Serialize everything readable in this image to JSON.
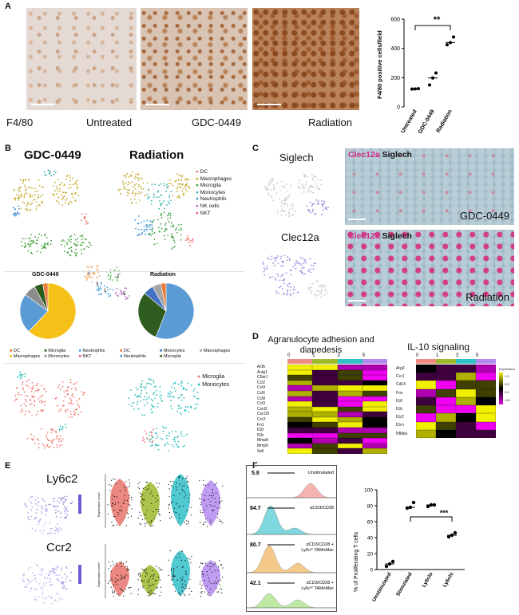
{
  "panels": {
    "A": "A",
    "B": "B",
    "C": "C",
    "D": "D",
    "E": "E",
    "F": "F"
  },
  "panelA": {
    "stain_label": "F4/80",
    "img_labels": [
      "Untreated",
      "GDC-0449",
      "Radiation"
    ],
    "sig": "**"
  },
  "panelB": {
    "titles": [
      "GDC-0449",
      "Radiation"
    ],
    "legend": [
      {
        "name": "DC",
        "color": "#e8736b"
      },
      {
        "name": "Macrophages",
        "color": "#c5a92c"
      },
      {
        "name": "Microglia",
        "color": "#3fa33a"
      },
      {
        "name": "Monocytes",
        "color": "#36b3b0"
      },
      {
        "name": "Neutrophils",
        "color": "#3f8fd8"
      },
      {
        "name": "NK cells",
        "color": "#b565c9"
      },
      {
        "name": "NKT",
        "color": "#e15ca5"
      }
    ],
    "pie_titles": [
      "GDC-0449",
      "Radiation"
    ],
    "pie1_legend": [
      "DC",
      "Microglia",
      "Neutrophils",
      "Macrophages",
      "Monocytes",
      "NKT"
    ],
    "pie2_legend": [
      "DC",
      "Monocytes",
      "Macrophages",
      "Neutrophils",
      "Microglia"
    ],
    "mono_legend": [
      "Microglia",
      "Monocytes"
    ],
    "umap_numbers": [
      "0",
      "1",
      "2",
      "3",
      "4",
      "5"
    ]
  },
  "panelC": {
    "genes": [
      "Siglech",
      "Clec12a"
    ],
    "img_labels": [
      "GDC-0449",
      "Radiation"
    ],
    "stain_a": "Clec12a",
    "stain_b": "Siglech"
  },
  "panelD": {
    "title1": "Agranulocyte adhesion and diapedesis",
    "title2": "IL-10 signaling",
    "clusters": [
      "0",
      "1",
      "3",
      "5"
    ],
    "genes1": [
      "Actb",
      "Actg1",
      "C5ar1",
      "Ccl2",
      "Ccl4",
      "Ccl6",
      "Ccl8",
      "Ccl3",
      "Cxcl2",
      "Cxcl10",
      "Ccr2",
      "Fn1",
      "Il1ß",
      "Il1b",
      "Mmp8",
      "Mmp9",
      "Sell"
    ],
    "genes2": [
      "Arg2",
      "Ccr1",
      "Cd14",
      "Fos",
      "Il1ß",
      "Il1b",
      "Il1r2",
      "Il1rn",
      "Nfkbia"
    ],
    "legend_title": "Expression",
    "legend_ticks": [
      "1.0",
      "0.5",
      "0.0",
      "-0.5",
      "-1.0"
    ]
  },
  "panelE": {
    "genes": [
      "Ly6c2",
      "Ccr2"
    ],
    "ylabel": "Expression Level"
  },
  "panelF": {
    "hist_labels": [
      "Unstimulated",
      "αCD3/CD28",
      "αCD3/CD28 + Ly6cʰⁱ TAMoMac",
      "αCD3/CD28 + Ly6cʰⁱ TAMoMac"
    ],
    "gate_values": [
      "5.8",
      "84.7",
      "80.7",
      "42.1"
    ],
    "sig": "***"
  },
  "chart_data": [
    {
      "type": "scatter",
      "ylabel": "F4/80 positive cells/field",
      "categories": [
        "Untreated",
        "GDC-0449",
        "Radiation"
      ],
      "yticks": [
        "0",
        "200",
        "400",
        "600"
      ],
      "ylim": [
        0,
        600
      ],
      "series": [
        {
          "values": [
            [
              0,
              122
            ],
            [
              0,
              123
            ],
            [
              0,
              125
            ],
            [
              1,
              150
            ],
            [
              1,
              198
            ],
            [
              1,
              232
            ],
            [
              2,
              425
            ],
            [
              2,
              440
            ],
            [
              2,
              478
            ]
          ]
        }
      ],
      "medians": [
        123,
        198,
        440
      ]
    },
    {
      "type": "pie",
      "title": "GDC-0449",
      "slices": [
        {
          "label": "Macrophages",
          "value": 62,
          "color": "#f5c018"
        },
        {
          "label": "Neutrophils",
          "value": 23,
          "color": "#5b9bd5"
        },
        {
          "label": "Monocytes",
          "value": 7,
          "color": "#8c8c8c"
        },
        {
          "label": "Microglia",
          "value": 5,
          "color": "#2f5d1f"
        },
        {
          "label": "DC",
          "value": 3,
          "color": "#e97b3b"
        }
      ]
    },
    {
      "type": "pie",
      "title": "Radiation",
      "slices": [
        {
          "label": "Neutrophils",
          "value": 56,
          "color": "#5b9bd5"
        },
        {
          "label": "Microglia",
          "value": 30,
          "color": "#2f5d1f"
        },
        {
          "label": "Monocytes",
          "value": 6,
          "color": "#4472c4"
        },
        {
          "label": "Macrophages",
          "value": 5,
          "color": "#a5a5a5"
        },
        {
          "label": "DC",
          "value": 3,
          "color": "#e97b3b"
        }
      ]
    },
    {
      "type": "scatter",
      "ylabel": "% of Proliferating T cells",
      "categories": [
        "Unstimulated",
        "Stimulated",
        "Ly6clo",
        "Ly6chi"
      ],
      "yticks": [
        "0",
        "20",
        "40",
        "60",
        "80",
        "100"
      ],
      "ylim": [
        0,
        100
      ],
      "series": [
        {
          "values": [
            [
              0,
              4
            ],
            [
              0,
              7
            ],
            [
              0,
              10
            ],
            [
              1,
              77
            ],
            [
              1,
              78
            ],
            [
              1,
              84
            ],
            [
              2,
              79
            ],
            [
              2,
              81
            ],
            [
              2,
              81
            ],
            [
              3,
              41
            ],
            [
              3,
              43
            ],
            [
              3,
              46
            ]
          ]
        }
      ],
      "medians": [
        7,
        78,
        81,
        43
      ]
    }
  ]
}
